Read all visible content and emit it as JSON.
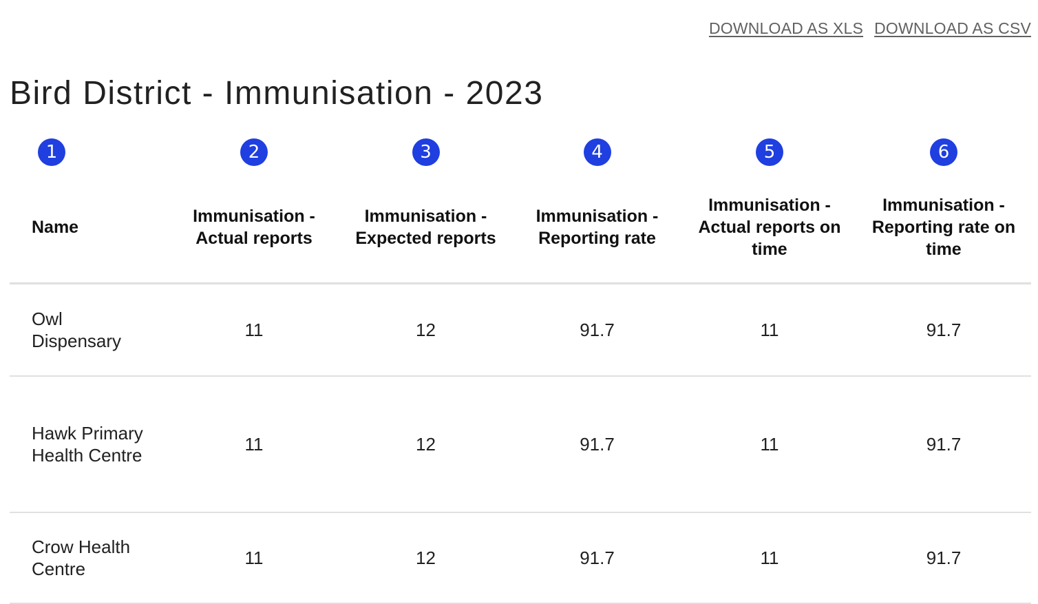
{
  "downloads": {
    "xls_label": "DOWNLOAD AS XLS",
    "csv_label": "DOWNLOAD AS CSV"
  },
  "report": {
    "title": "Bird District - Immunisation - 2023"
  },
  "colors": {
    "badge": "#1f3fe0",
    "divider": "#e0e0e0",
    "link": "#616161"
  },
  "table": {
    "badges": [
      "1",
      "2",
      "3",
      "4",
      "5",
      "6"
    ],
    "headers": [
      "Name",
      "Immunisation - Actual reports",
      "Immunisation - Expected reports",
      "Immunisation - Reporting rate",
      "Immunisation - Actual reports on time",
      "Immunisation - Reporting rate on time"
    ],
    "rows": [
      [
        "Owl Dispensary",
        "11",
        "12",
        "91.7",
        "11",
        "91.7"
      ],
      [
        "Hawk Primary Health Centre",
        "11",
        "12",
        "91.7",
        "11",
        "91.7"
      ],
      [
        "Crow Health Centre",
        "11",
        "12",
        "91.7",
        "11",
        "91.7"
      ]
    ]
  }
}
